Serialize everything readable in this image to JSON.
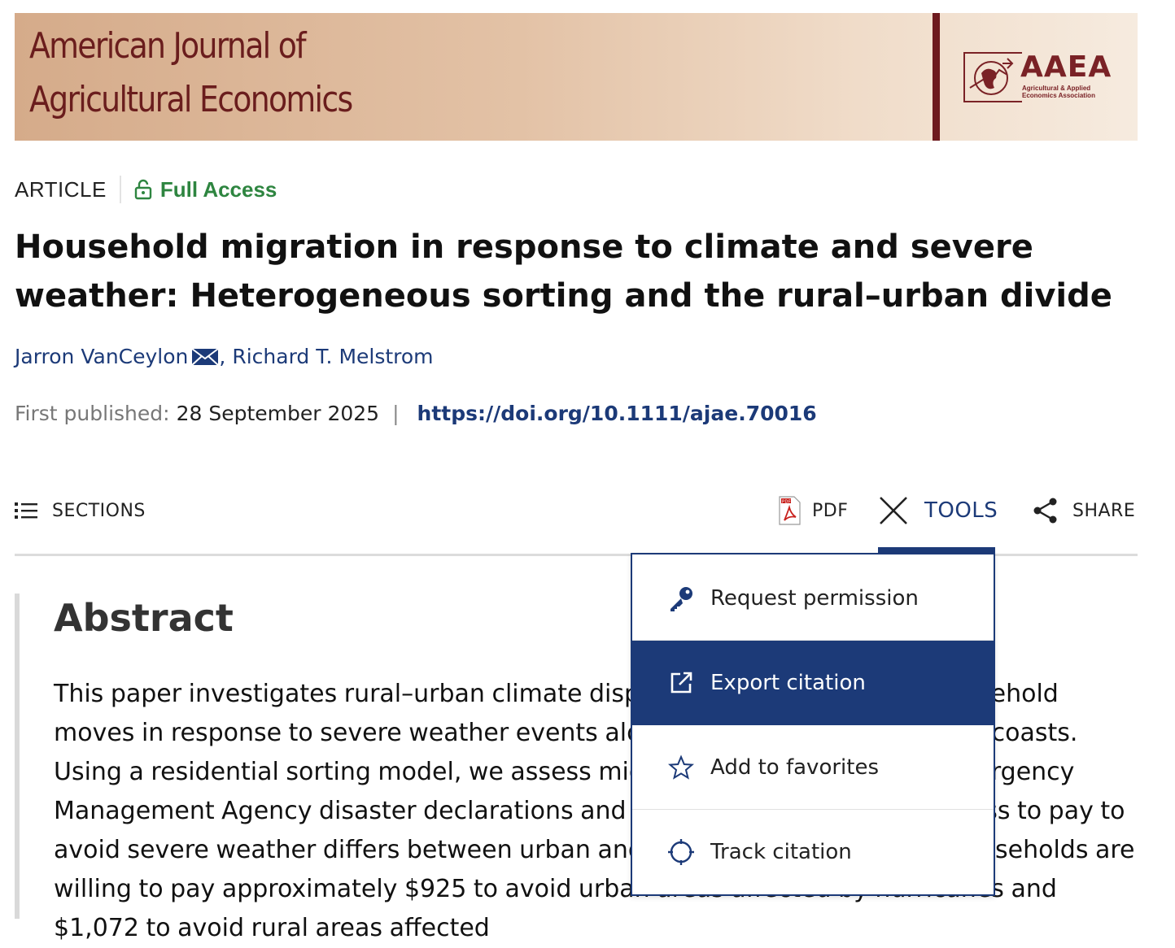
{
  "journal": {
    "title": "American Journal of\nAgricultural Economics",
    "brand": "AAEA",
    "brand_subtitle": "Agricultural & Applied\nEconomics Association",
    "colors": {
      "maroon": "#6e1a1e",
      "banner_start": "#d5ab8a",
      "banner_end": "#f6ebdf"
    }
  },
  "article": {
    "type": "ARTICLE",
    "access": "Full Access",
    "title": "Household migration in response to climate and severe weather: Heterogeneous sorting and the rural–urban divide",
    "authors": [
      "Jarron VanCeylon",
      "Richard T. Melstrom"
    ],
    "author_separator": ",",
    "published_label": "First published:",
    "published_date": "28 September 2025",
    "separator": "|",
    "doi": "https://doi.org/10.1111/ajae.70016"
  },
  "toolbar": {
    "sections_label": "SECTIONS",
    "pdf_label": "PDF",
    "tools_label": "TOOLS",
    "share_label": "SHARE"
  },
  "tools_menu": {
    "items": [
      {
        "label": "Request permission",
        "icon": "key-icon"
      },
      {
        "label": "Export citation",
        "icon": "external-link-icon",
        "active": true
      },
      {
        "label": "Add to favorites",
        "icon": "star-icon"
      },
      {
        "label": "Track citation",
        "icon": "crosshair-icon"
      }
    ]
  },
  "abstract": {
    "heading": "Abstract",
    "body": "This paper investigates rural–urban climate displacement by examining household moves in response to severe weather events along the U.S. Gulf and Atlantic coasts. Using a residential sorting model, we assess migration following Federal Emergency Management Agency disaster declarations and find that household willingness to pay to avoid severe weather differs between urban and rural areas. Specifically, households are willing to pay approximately $925 to avoid urban areas affected by hurricanes and $1,072 to avoid rural areas affected"
  },
  "colors": {
    "link_blue": "#1c3a78",
    "access_green": "#2e8540",
    "menu_active_bg": "#1c3a78",
    "pdf_red": "#c8201c"
  }
}
